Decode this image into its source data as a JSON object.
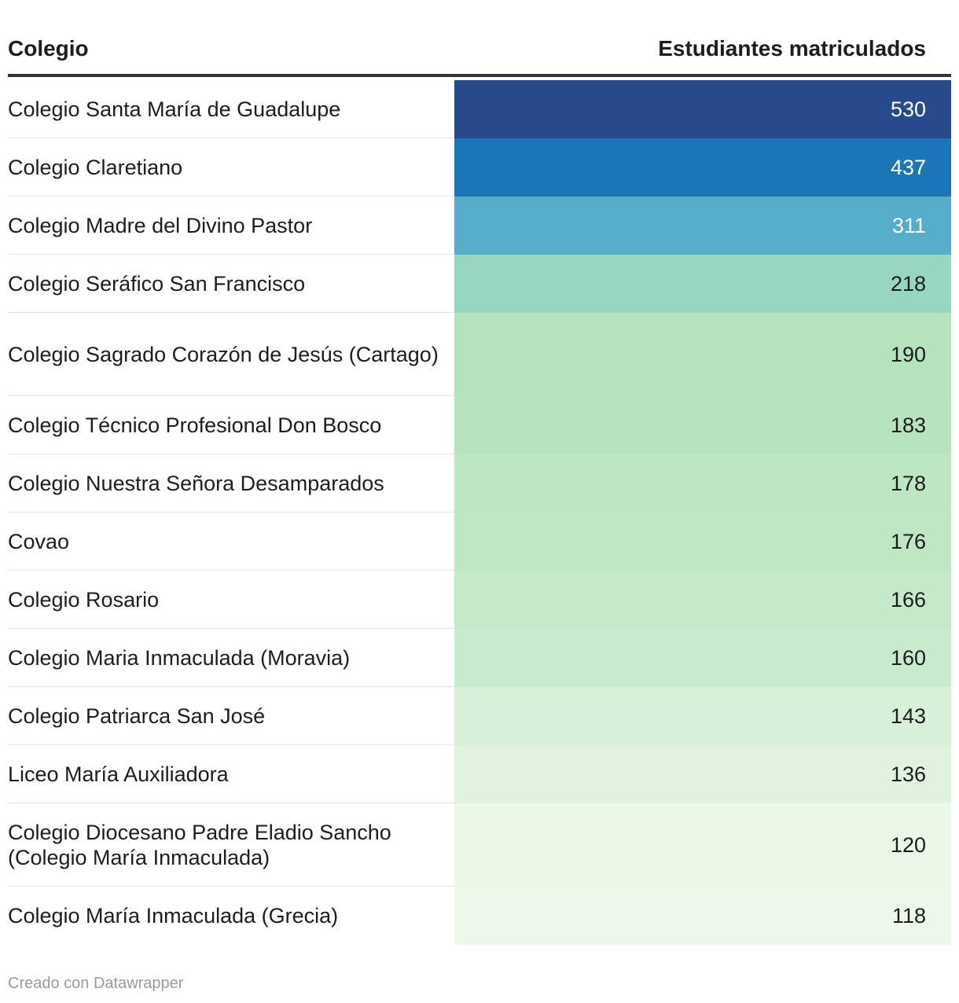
{
  "chart_data": {
    "type": "table",
    "columns": [
      "Colegio",
      "Estudiantes matriculados"
    ],
    "rows": [
      {
        "name": "Colegio Santa María de Guadalupe",
        "value": 530,
        "color": "#264a8b",
        "text_color": "#ffffff"
      },
      {
        "name": "Colegio Claretiano",
        "value": 437,
        "color": "#1c75b5",
        "text_color": "#ffffff"
      },
      {
        "name": "Colegio Madre del Divino Pastor",
        "value": 311,
        "color": "#55adca",
        "text_color": "#ffffff"
      },
      {
        "name": "Colegio Seráfico San Francisco",
        "value": 218,
        "color": "#98d6c1",
        "text_color": "#1d1d1d"
      },
      {
        "name": "Colegio Sagrado Corazón de Jesús (Cartago)",
        "value": 190,
        "color": "#b4e3bd",
        "text_color": "#1d1d1d"
      },
      {
        "name": "Colegio Técnico Profesional Don Bosco",
        "value": 183,
        "color": "#b7e4bf",
        "text_color": "#1d1d1d"
      },
      {
        "name": "Colegio Nuestra Señora Desamparados",
        "value": 178,
        "color": "#bde6c2",
        "text_color": "#1d1d1d"
      },
      {
        "name": "Covao",
        "value": 176,
        "color": "#bfe7c4",
        "text_color": "#1d1d1d"
      },
      {
        "name": "Colegio Rosario",
        "value": 166,
        "color": "#c5e9c9",
        "text_color": "#1d1d1d"
      },
      {
        "name": "Colegio Maria Inmaculada (Moravia)",
        "value": 160,
        "color": "#c9ebcd",
        "text_color": "#1d1d1d"
      },
      {
        "name": "Colegio Patriarca San José",
        "value": 143,
        "color": "#d9f0d8",
        "text_color": "#1d1d1d"
      },
      {
        "name": "Liceo María Auxiliadora",
        "value": 136,
        "color": "#e0f3de",
        "text_color": "#1d1d1d"
      },
      {
        "name": "Colegio Diocesano Padre Eladio Sancho (Colegio María Inmaculada)",
        "value": 120,
        "color": "#ebf7e7",
        "text_color": "#1d1d1d"
      },
      {
        "name": "Colegio María Inmaculada (Grecia)",
        "value": 118,
        "color": "#eef8ea",
        "text_color": "#1d1d1d"
      }
    ]
  },
  "footer": "Creado con Datawrapper"
}
